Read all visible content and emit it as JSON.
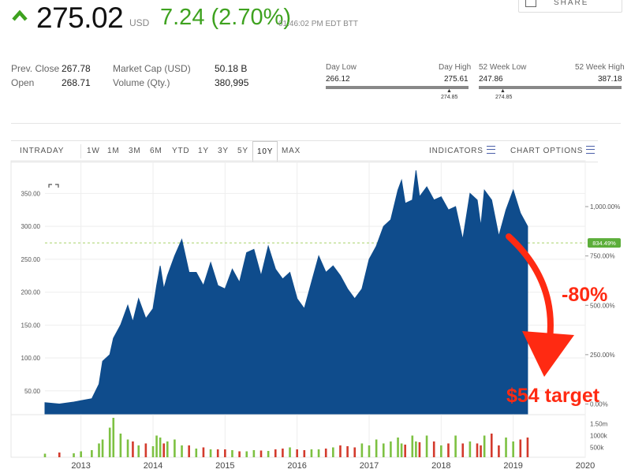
{
  "quote": {
    "price": "275.02",
    "currency": "USD",
    "change": "7.24 (2.70%)",
    "timestamp": "01:46:02 PM EDT BTT",
    "direction_icon": "up-arrow-icon",
    "up_color": "#3ea21f"
  },
  "share_button": {
    "label": "SHARE",
    "icon": "share-icon"
  },
  "stats": [
    {
      "label": "Prev. Close",
      "value": "267.78"
    },
    {
      "label": "Open",
      "value": "268.71"
    },
    {
      "label": "Market Cap (USD)",
      "value": "50.18 B"
    },
    {
      "label": "Volume (Qty.)",
      "value": "380,995"
    }
  ],
  "day_range": {
    "low_label": "Day Low",
    "low": "266.12",
    "high_label": "Day High",
    "high": "275.61",
    "marker": "274.85"
  },
  "week52_range": {
    "low_label": "52 Week Low",
    "low": "247.86",
    "high_label": "52 Week High",
    "high": "387.18",
    "marker": "274.85"
  },
  "toolbar": {
    "ranges": [
      "INTRADAY",
      "1W",
      "1M",
      "3M",
      "6M",
      "YTD",
      "1Y",
      "3Y",
      "5Y",
      "10Y",
      "MAX"
    ],
    "active": "10Y",
    "indicators": "INDICATORS",
    "chart_options": "CHART OPTIONS"
  },
  "annotation": {
    "percent": "-80%",
    "target": "$54 target",
    "color": "#ff2a12"
  },
  "chart_data": {
    "type": "area",
    "fill_color": "#0f4c8c",
    "x": [
      2012.5,
      2012.7,
      2012.9,
      2013.0,
      2013.15,
      2013.25,
      2013.3,
      2013.4,
      2013.45,
      2013.55,
      2013.65,
      2013.72,
      2013.8,
      2013.9,
      2014.0,
      2014.05,
      2014.1,
      2014.15,
      2014.2,
      2014.3,
      2014.4,
      2014.5,
      2014.6,
      2014.7,
      2014.8,
      2014.9,
      2015.0,
      2015.1,
      2015.2,
      2015.3,
      2015.4,
      2015.5,
      2015.6,
      2015.7,
      2015.8,
      2015.9,
      2016.0,
      2016.1,
      2016.2,
      2016.3,
      2016.4,
      2016.5,
      2016.6,
      2016.7,
      2016.8,
      2016.9,
      2017.0,
      2017.1,
      2017.2,
      2017.3,
      2017.4,
      2017.45,
      2017.5,
      2017.6,
      2017.65,
      2017.7,
      2017.8,
      2017.9,
      2018.0,
      2018.1,
      2018.2,
      2018.3,
      2018.4,
      2018.5,
      2018.55,
      2018.6,
      2018.7,
      2018.8,
      2018.9,
      2019.0,
      2019.1,
      2019.2
    ],
    "values": [
      32,
      30,
      33,
      35,
      38,
      60,
      95,
      105,
      130,
      150,
      180,
      155,
      190,
      160,
      175,
      210,
      240,
      205,
      225,
      255,
      280,
      230,
      230,
      210,
      245,
      210,
      205,
      235,
      215,
      260,
      265,
      225,
      270,
      235,
      220,
      230,
      190,
      175,
      215,
      255,
      230,
      240,
      225,
      205,
      190,
      205,
      250,
      270,
      300,
      310,
      355,
      370,
      335,
      340,
      385,
      345,
      360,
      340,
      345,
      325,
      330,
      280,
      350,
      340,
      300,
      355,
      340,
      285,
      325,
      355,
      320,
      300
    ],
    "volume": [
      0.09,
      0.12,
      0.1,
      0.15,
      0.18,
      0.35,
      0.45,
      0.75,
      1.0,
      0.6,
      0.45,
      0.4,
      0.3,
      0.35,
      0.28,
      0.55,
      0.5,
      0.35,
      0.4,
      0.45,
      0.3,
      0.3,
      0.22,
      0.25,
      0.2,
      0.2,
      0.2,
      0.18,
      0.15,
      0.15,
      0.18,
      0.17,
      0.16,
      0.2,
      0.22,
      0.25,
      0.2,
      0.18,
      0.2,
      0.2,
      0.22,
      0.25,
      0.3,
      0.28,
      0.25,
      0.35,
      0.3,
      0.45,
      0.35,
      0.4,
      0.5,
      0.35,
      0.32,
      0.55,
      0.4,
      0.38,
      0.55,
      0.4,
      0.3,
      0.35,
      0.55,
      0.35,
      0.4,
      0.35,
      0.3,
      0.55,
      0.6,
      0.3,
      0.5,
      0.4,
      0.45,
      0.5
    ],
    "x_ticks": [
      "2013",
      "2014",
      "2015",
      "2016",
      "2017",
      "2018",
      "2019",
      "2020"
    ],
    "y_ticks": [
      "50.00",
      "100.00",
      "150.00",
      "200.00",
      "250.00",
      "300.00",
      "350.00"
    ],
    "y_right_ticks": [
      "1,000.00%",
      "750.00%",
      "500.00%",
      "250.00%",
      "0.00%"
    ],
    "vol_ticks": [
      "1.50m",
      "1000k",
      "500k"
    ],
    "reference_label": "834.49%",
    "reference_value": 274.85,
    "xlim": [
      2012.5,
      2020.0
    ],
    "ylim": [
      15,
      390
    ],
    "grid": true
  }
}
